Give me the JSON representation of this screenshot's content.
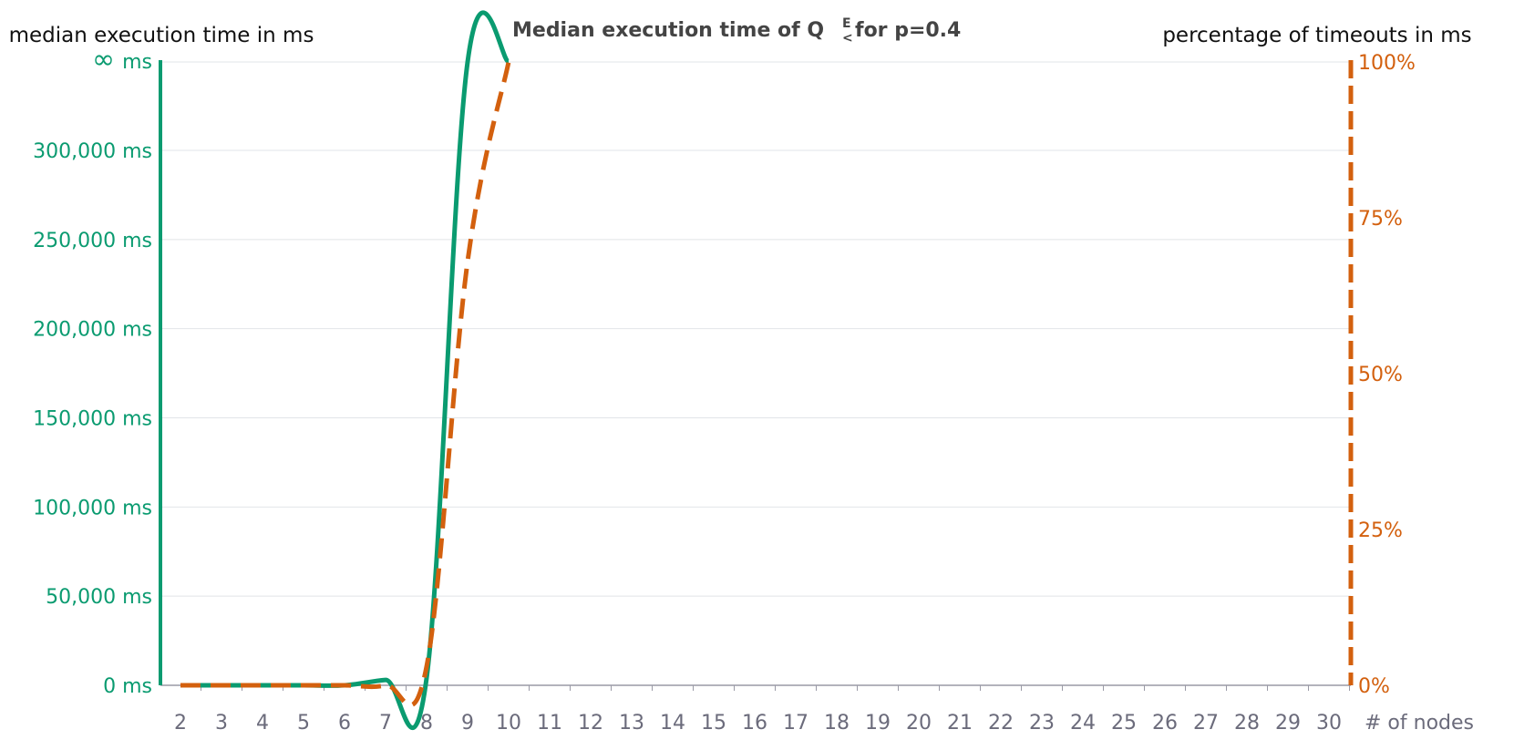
{
  "chart_data": {
    "type": "line",
    "title": {
      "before": "Median execution time of Q",
      "superscript": "E",
      "subscript": "<",
      "after": " for p=0.4"
    },
    "y_left_title": "median execution time in ms",
    "y_right_title": "percentage of timeouts in ms",
    "x_title": "# of nodes",
    "x": [
      2,
      3,
      4,
      5,
      6,
      7,
      8,
      9,
      10,
      11,
      12,
      13,
      14,
      15,
      16,
      17,
      18,
      19,
      20,
      21,
      22,
      23,
      24,
      25,
      26,
      27,
      28,
      29,
      30
    ],
    "xlim": [
      2,
      30
    ],
    "y_left_ylim": [
      0,
      350000
    ],
    "y_left_ticks": [
      {
        "value": 0,
        "label": "0 ms"
      },
      {
        "value": 50000,
        "label": "50,000 ms"
      },
      {
        "value": 100000,
        "label": "100,000 ms"
      },
      {
        "value": 150000,
        "label": "150,000 ms"
      },
      {
        "value": 200000,
        "label": "200,000 ms"
      },
      {
        "value": 250000,
        "label": "250,000 ms"
      },
      {
        "value": 300000,
        "label": "300,000 ms"
      }
    ],
    "y_left_infinity_label": {
      "symbol": "∞",
      "unit": "ms"
    },
    "y_right_ylim": [
      0,
      100
    ],
    "y_right_ticks": [
      {
        "value": 0,
        "label": "0%"
      },
      {
        "value": 25,
        "label": "25%"
      },
      {
        "value": 50,
        "label": "50%"
      },
      {
        "value": 75,
        "label": "75%"
      },
      {
        "value": 100,
        "label": "100%"
      }
    ],
    "grid": true,
    "series": [
      {
        "axis": "left",
        "color": "#0a9b70",
        "style": "solid",
        "x": [
          2,
          3,
          4,
          5,
          6,
          7,
          8,
          9,
          10
        ],
        "values": [
          0,
          0,
          0,
          0,
          0,
          3000,
          4000,
          "infinity",
          "infinity"
        ]
      },
      {
        "axis": "right",
        "color": "#d3600e",
        "style": "dashed",
        "x": [
          2,
          3,
          4,
          5,
          6,
          7,
          8,
          9,
          10
        ],
        "values": [
          0,
          0,
          0,
          0,
          0,
          0,
          3,
          68,
          100
        ]
      }
    ]
  }
}
